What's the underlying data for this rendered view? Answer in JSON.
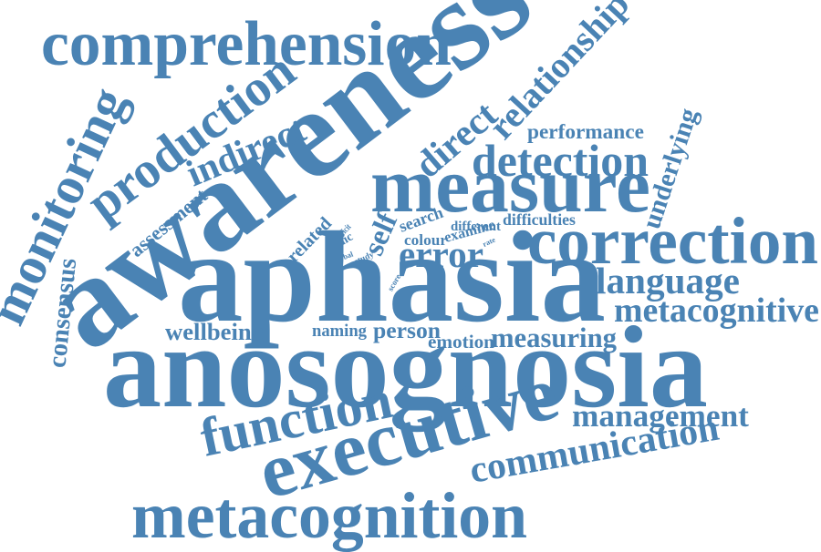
{
  "colors": {
    "word": "#4a83b4",
    "background": "#ffffff"
  },
  "words": [
    {
      "key": "comprehension",
      "text": "comprehension"
    },
    {
      "key": "awareness",
      "text": "awareness"
    },
    {
      "key": "relationship",
      "text": "relationship"
    },
    {
      "key": "monitoring",
      "text": "monitoring"
    },
    {
      "key": "production",
      "text": "production"
    },
    {
      "key": "indirect",
      "text": "indirect"
    },
    {
      "key": "direct",
      "text": "direct"
    },
    {
      "key": "performance",
      "text": "performance"
    },
    {
      "key": "underlying",
      "text": "underlying"
    },
    {
      "key": "detection",
      "text": "detection"
    },
    {
      "key": "measure",
      "text": "measure"
    },
    {
      "key": "assessment",
      "text": "assessment"
    },
    {
      "key": "deficit",
      "text": "deficit"
    },
    {
      "key": "search",
      "text": "search"
    },
    {
      "key": "different",
      "text": "different"
    },
    {
      "key": "difficulties",
      "text": "difficulties"
    },
    {
      "key": "self",
      "text": "self"
    },
    {
      "key": "related",
      "text": "related"
    },
    {
      "key": "clinic",
      "text": "clinic"
    },
    {
      "key": "colour",
      "text": "colour"
    },
    {
      "key": "examine",
      "text": "examine"
    },
    {
      "key": "error",
      "text": "error"
    },
    {
      "key": "correction",
      "text": "correction"
    },
    {
      "key": "verbal",
      "text": "verbal"
    },
    {
      "key": "study",
      "text": "study"
    },
    {
      "key": "score",
      "text": "score"
    },
    {
      "key": "rate",
      "text": "rate"
    },
    {
      "key": "consensus",
      "text": "consensus"
    },
    {
      "key": "aphasia",
      "text": "aphasia"
    },
    {
      "key": "language",
      "text": "language"
    },
    {
      "key": "metacognitive",
      "text": "metacognitive"
    },
    {
      "key": "wellbeing",
      "text": "wellbeing"
    },
    {
      "key": "naming",
      "text": "naming"
    },
    {
      "key": "person",
      "text": "person"
    },
    {
      "key": "emotion",
      "text": "emotion"
    },
    {
      "key": "measuring",
      "text": "measuring"
    },
    {
      "key": "anosognosia",
      "text": "anosognosia"
    },
    {
      "key": "function",
      "text": "function"
    },
    {
      "key": "management",
      "text": "management"
    },
    {
      "key": "executive",
      "text": "executive"
    },
    {
      "key": "communication",
      "text": "communication"
    },
    {
      "key": "metacognition",
      "text": "metacognition"
    }
  ]
}
